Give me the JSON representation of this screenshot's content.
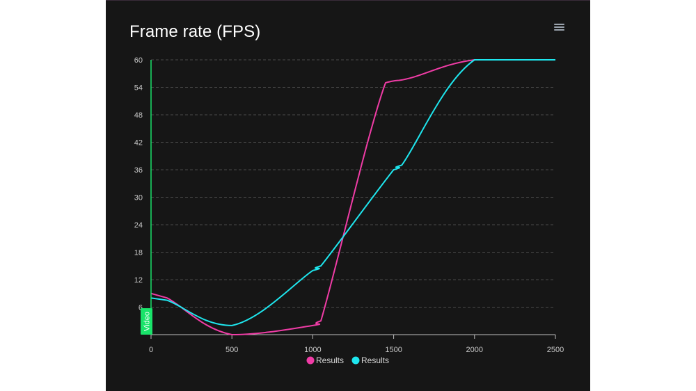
{
  "title": "Frame rate (FPS)",
  "menu_icon": "hamburger-menu-icon",
  "marker_label": "Video",
  "colors": {
    "background": "#161616",
    "grid": "#4a4a4a",
    "axis": "#bdbdbd",
    "marker": "#19e36a",
    "series_1": "#f03ca6",
    "series_2": "#1ee6ee"
  },
  "chart_data": {
    "type": "line",
    "title": "Frame rate (FPS)",
    "xlabel": "",
    "ylabel": "",
    "xlim": [
      0,
      2500
    ],
    "ylim": [
      0,
      60
    ],
    "x_ticks": [
      0,
      500,
      1000,
      1500,
      2000,
      2500
    ],
    "y_ticks": [
      6,
      12,
      18,
      24,
      30,
      36,
      42,
      48,
      54,
      60
    ],
    "grid": true,
    "legend_position": "bottom-center",
    "marker_line": {
      "x": 0,
      "label": "Video"
    },
    "series": [
      {
        "name": "Results",
        "color": "#f03ca6",
        "x": [
          0,
          100,
          500,
          1000,
          1050,
          1450,
          1600,
          2000,
          2500
        ],
        "y": [
          9,
          8,
          0,
          2,
          3,
          55,
          56,
          60,
          60
        ]
      },
      {
        "name": "Results",
        "color": "#1ee6ee",
        "x": [
          0,
          100,
          500,
          1000,
          1050,
          1500,
          1550,
          2000,
          2500
        ],
        "y": [
          8,
          7.5,
          2,
          14,
          15,
          36,
          37,
          60,
          60
        ]
      }
    ]
  }
}
